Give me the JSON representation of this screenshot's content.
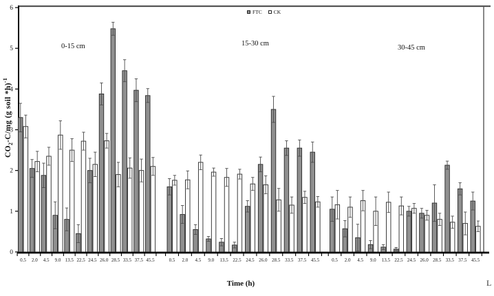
{
  "chart_data": {
    "type": "bar",
    "title": "",
    "xlabel": "Time (h)",
    "ylabel_plain": "CO2-C/mg (g soil *h)-1",
    "ylabel_parts": {
      "prefix": "CO",
      "sub": "2",
      "mid": "-C/mg (g soil *h)",
      "sup": "-1"
    },
    "ylim": [
      0,
      6
    ],
    "yticks": [
      0,
      1,
      2,
      3,
      4,
      5,
      6
    ],
    "grid": false,
    "legend_position": "top-center",
    "categories": [
      "0.5",
      "2.0",
      "4.5",
      "9.0",
      "13.5",
      "22.5",
      "24.5",
      "26.0",
      "28.5",
      "33.5",
      "37.5",
      "45.5"
    ],
    "legend": [
      {
        "name": "FTC",
        "fill": "#8f8f8f"
      },
      {
        "name": "CK",
        "fill": "#ffffff"
      }
    ],
    "groups": [
      {
        "label": "0-15 cm",
        "series": [
          {
            "name": "FTC",
            "values": [
              3.3,
              2.05,
              1.88,
              0.9,
              0.8,
              0.45,
              2.0,
              3.88,
              5.48,
              4.45,
              3.97,
              3.84
            ],
            "errors": [
              0.35,
              0.22,
              0.3,
              0.33,
              0.28,
              0.22,
              0.3,
              0.27,
              0.16,
              0.27,
              0.28,
              0.17
            ]
          },
          {
            "name": "CK",
            "values": [
              3.08,
              2.22,
              2.35,
              2.87,
              2.5,
              2.72,
              2.15,
              2.73,
              1.9,
              2.06,
              2.0,
              2.1
            ],
            "errors": [
              0.28,
              0.25,
              0.22,
              0.35,
              0.28,
              0.22,
              0.3,
              0.18,
              0.3,
              0.25,
              0.28,
              0.22
            ]
          }
        ]
      },
      {
        "label": "15-30 cm",
        "series": [
          {
            "name": "FTC",
            "values": [
              1.6,
              0.92,
              0.55,
              0.32,
              0.24,
              0.17,
              1.12,
              2.15,
              3.5,
              2.55,
              2.55,
              2.45
            ],
            "errors": [
              0.2,
              0.22,
              0.12,
              0.06,
              0.09,
              0.07,
              0.14,
              0.18,
              0.32,
              0.18,
              0.2,
              0.25
            ]
          },
          {
            "name": "CK",
            "values": [
              1.76,
              1.77,
              2.2,
              1.96,
              1.83,
              1.91,
              1.67,
              1.65,
              1.28,
              1.15,
              1.34,
              1.23
            ],
            "errors": [
              0.12,
              0.22,
              0.18,
              0.1,
              0.22,
              0.12,
              0.16,
              0.22,
              0.28,
              0.2,
              0.15,
              0.13
            ]
          }
        ]
      },
      {
        "label": "30-45 cm",
        "series": [
          {
            "name": "FTC",
            "values": [
              1.05,
              0.57,
              0.35,
              0.18,
              0.12,
              0.07,
              1.0,
              0.95,
              1.2,
              2.13,
              1.55,
              1.25
            ],
            "errors": [
              0.3,
              0.2,
              0.33,
              0.1,
              0.06,
              0.04,
              0.12,
              0.12,
              0.45,
              0.1,
              0.15,
              0.22
            ]
          },
          {
            "name": "CK",
            "values": [
              1.16,
              1.1,
              1.26,
              1.0,
              1.22,
              1.13,
              1.07,
              0.9,
              0.8,
              0.73,
              0.7,
              0.63
            ],
            "errors": [
              0.35,
              0.25,
              0.25,
              0.35,
              0.25,
              0.22,
              0.12,
              0.12,
              0.15,
              0.15,
              0.28,
              0.13
            ]
          }
        ]
      }
    ]
  },
  "colors": {
    "ftc_fill": "#8f8f8f",
    "ck_fill": "#ffffff",
    "bar_stroke": "#262626",
    "error_bar": "#4a4a4a",
    "axis": "#000000",
    "frame": "#555555"
  },
  "corner_mark": "L"
}
